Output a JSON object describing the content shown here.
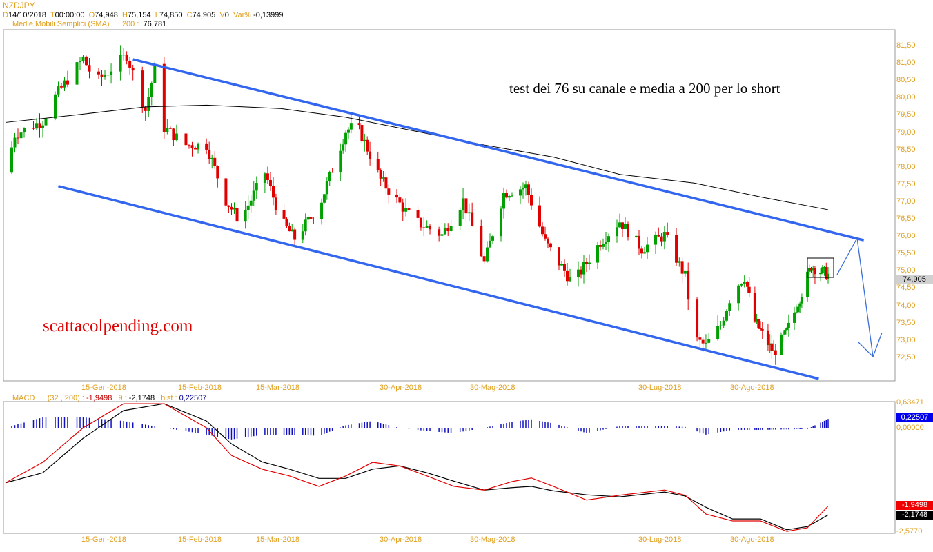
{
  "header": {
    "symbol": "NZDJPY",
    "d_label": "D",
    "date": "14/10/2018",
    "t_label": "T",
    "time": "00:00:00",
    "o_label": "O",
    "open": "74,948",
    "h_label": "H",
    "high": "75,154",
    "l_label": "L",
    "low": "74,850",
    "c_label": "C",
    "close": "74,905",
    "v_label": "V",
    "volume": "0",
    "var_label": "Var%",
    "var": "-0,13999",
    "sma_label": "Medie Mobili Semplici (SMA)",
    "sma_period": "200 :",
    "sma_value": "76,781"
  },
  "macd_header": {
    "label": "MACD",
    "params": "(32 , 200) :",
    "macd": "-1,9498",
    "signal_label": "9 :",
    "signal": "-2,1748",
    "hist_label": "hist :",
    "hist": "0,22507"
  },
  "annotations": {
    "text": "test dei 76 su canale e media a 200 per lo short",
    "watermark": "scattacolpending.com"
  },
  "price_axis": {
    "ticks": [
      "81,50",
      "81,00",
      "80,50",
      "80,00",
      "79,50",
      "79,00",
      "78,50",
      "78,00",
      "77,50",
      "77,00",
      "76,50",
      "76,00",
      "75,50",
      "75,00",
      "74,50",
      "74,00",
      "73,50",
      "73,00",
      "72,50"
    ],
    "last_price": "74,905"
  },
  "macd_axis": {
    "ticks": [
      "0,63471",
      "0,00000",
      "-2,5770"
    ],
    "hist_label": "0,22507",
    "macd_label": "-1,9498",
    "signal_label": "-2,1748"
  },
  "time_axis": {
    "ticks": [
      "15-Gen-2018",
      "15-Feb-2018",
      "15-Mar-2018",
      "30-Apr-2018",
      "30-Mag-2018",
      "30-Lug-2018",
      "30-Ago-2018"
    ]
  },
  "colors": {
    "up": "#00a000",
    "down": "#e00000",
    "channel": "#3366ee",
    "sma": "#000000",
    "macd": "#e00000",
    "signal": "#000000",
    "hist": "#1010c0",
    "axis_text": "#e0a020"
  },
  "chart_data": [
    {
      "type": "candlestick",
      "symbol": "NZDJPY",
      "ylim": [
        72.0,
        81.9
      ],
      "close_path": [
        [
          "2017-12-16",
          77.85
        ],
        [
          "2017-12-19",
          78.95
        ],
        [
          "2017-12-28",
          79.35
        ],
        [
          "2018-01-01",
          80.05
        ],
        [
          "2018-01-10",
          81.15
        ],
        [
          "2018-01-14",
          80.45
        ],
        [
          "2018-01-24",
          81.25
        ],
        [
          "2018-01-30",
          79.65
        ],
        [
          "2018-02-02",
          80.85
        ],
        [
          "2018-02-05",
          79.15
        ],
        [
          "2018-02-12",
          78.65
        ],
        [
          "2018-02-19",
          78.65
        ],
        [
          "2018-02-26",
          77.05
        ],
        [
          "2018-03-03",
          76.45
        ],
        [
          "2018-03-12",
          77.85
        ],
        [
          "2018-03-18",
          76.45
        ],
        [
          "2018-03-23",
          75.95
        ],
        [
          "2018-04-01",
          76.85
        ],
        [
          "2018-04-11",
          79.05
        ],
        [
          "2018-04-15",
          79.25
        ],
        [
          "2018-04-24",
          77.65
        ],
        [
          "2018-05-06",
          76.45
        ],
        [
          "2018-05-15",
          76.05
        ],
        [
          "2018-05-22",
          77.05
        ],
        [
          "2018-05-29",
          75.25
        ],
        [
          "2018-06-05",
          77.25
        ],
        [
          "2018-06-13",
          77.45
        ],
        [
          "2018-06-20",
          75.85
        ],
        [
          "2018-06-30",
          74.65
        ],
        [
          "2018-07-10",
          75.85
        ],
        [
          "2018-07-17",
          76.45
        ],
        [
          "2018-07-25",
          75.65
        ],
        [
          "2018-08-02",
          76.05
        ],
        [
          "2018-08-09",
          74.85
        ],
        [
          "2018-08-12",
          73.05
        ],
        [
          "2018-08-16",
          72.85
        ],
        [
          "2018-08-21",
          73.45
        ],
        [
          "2018-08-25",
          74.45
        ],
        [
          "2018-08-29",
          74.85
        ],
        [
          "2018-09-02",
          73.65
        ],
        [
          "2018-09-13",
          72.65
        ],
        [
          "2018-09-20",
          73.25
        ],
        [
          "2018-09-27",
          74.25
        ],
        [
          "2018-10-03",
          75.15
        ],
        [
          "2018-10-12",
          74.905
        ]
      ],
      "sma200": [
        [
          "2017-12-16",
          79.3
        ],
        [
          "2018-01-06",
          79.5
        ],
        [
          "2018-01-30",
          79.75
        ],
        [
          "2018-02-19",
          79.8
        ],
        [
          "2018-03-18",
          79.7
        ],
        [
          "2018-04-11",
          79.45
        ],
        [
          "2018-05-06",
          79.05
        ],
        [
          "2018-05-29",
          78.65
        ],
        [
          "2018-06-23",
          78.3
        ],
        [
          "2018-07-17",
          77.8
        ],
        [
          "2018-08-12",
          77.55
        ],
        [
          "2018-09-06",
          77.15
        ],
        [
          "2018-10-12",
          76.78
        ]
      ],
      "channel_upper": [
        [
          "2018-01-26",
          81.12
        ],
        [
          "2018-10-31",
          75.9
        ]
      ],
      "channel_lower": [
        [
          "2018-01-02",
          77.46
        ],
        [
          "2018-10-07",
          71.9
        ]
      ]
    },
    {
      "type": "line",
      "title": "MACD",
      "ylim": [
        -2.577,
        0.63471
      ],
      "dates": [
        "2017-12-16",
        "2017-12-28",
        "2018-01-10",
        "2018-01-23",
        "2018-02-05",
        "2018-02-19",
        "2018-02-28",
        "2018-03-11",
        "2018-03-21",
        "2018-04-01",
        "2018-04-11",
        "2018-04-21",
        "2018-05-01",
        "2018-05-10",
        "2018-05-19",
        "2018-05-29",
        "2018-06-08",
        "2018-06-15",
        "2018-06-23",
        "2018-07-05",
        "2018-07-17",
        "2018-08-02",
        "2018-08-09",
        "2018-08-16",
        "2018-08-25",
        "2018-09-06",
        "2018-09-20",
        "2018-10-01",
        "2018-10-12"
      ],
      "series": [
        {
          "name": "MACD",
          "values": [
            -1.37,
            -0.86,
            0,
            0.6,
            0.6,
            0,
            -0.69,
            -1.03,
            -1.2,
            -1.46,
            -1.2,
            -0.86,
            -0.95,
            -1.2,
            -1.46,
            -1.55,
            -1.34,
            -1.25,
            -1.46,
            -1.8,
            -1.68,
            -1.55,
            -1.68,
            -2.15,
            -2.32,
            -2.32,
            -2.58,
            -2.49,
            -1.95
          ]
        },
        {
          "name": "signal",
          "values": [
            -1.37,
            -1.12,
            -0.26,
            0.43,
            0.6,
            0.17,
            -0.4,
            -0.85,
            -1.03,
            -1.26,
            -1.26,
            -1.03,
            -0.95,
            -1.12,
            -1.33,
            -1.55,
            -1.49,
            -1.46,
            -1.57,
            -1.67,
            -1.72,
            -1.6,
            -1.7,
            -1.98,
            -2.27,
            -2.27,
            -2.54,
            -2.46,
            -2.17
          ]
        }
      ]
    }
  ]
}
